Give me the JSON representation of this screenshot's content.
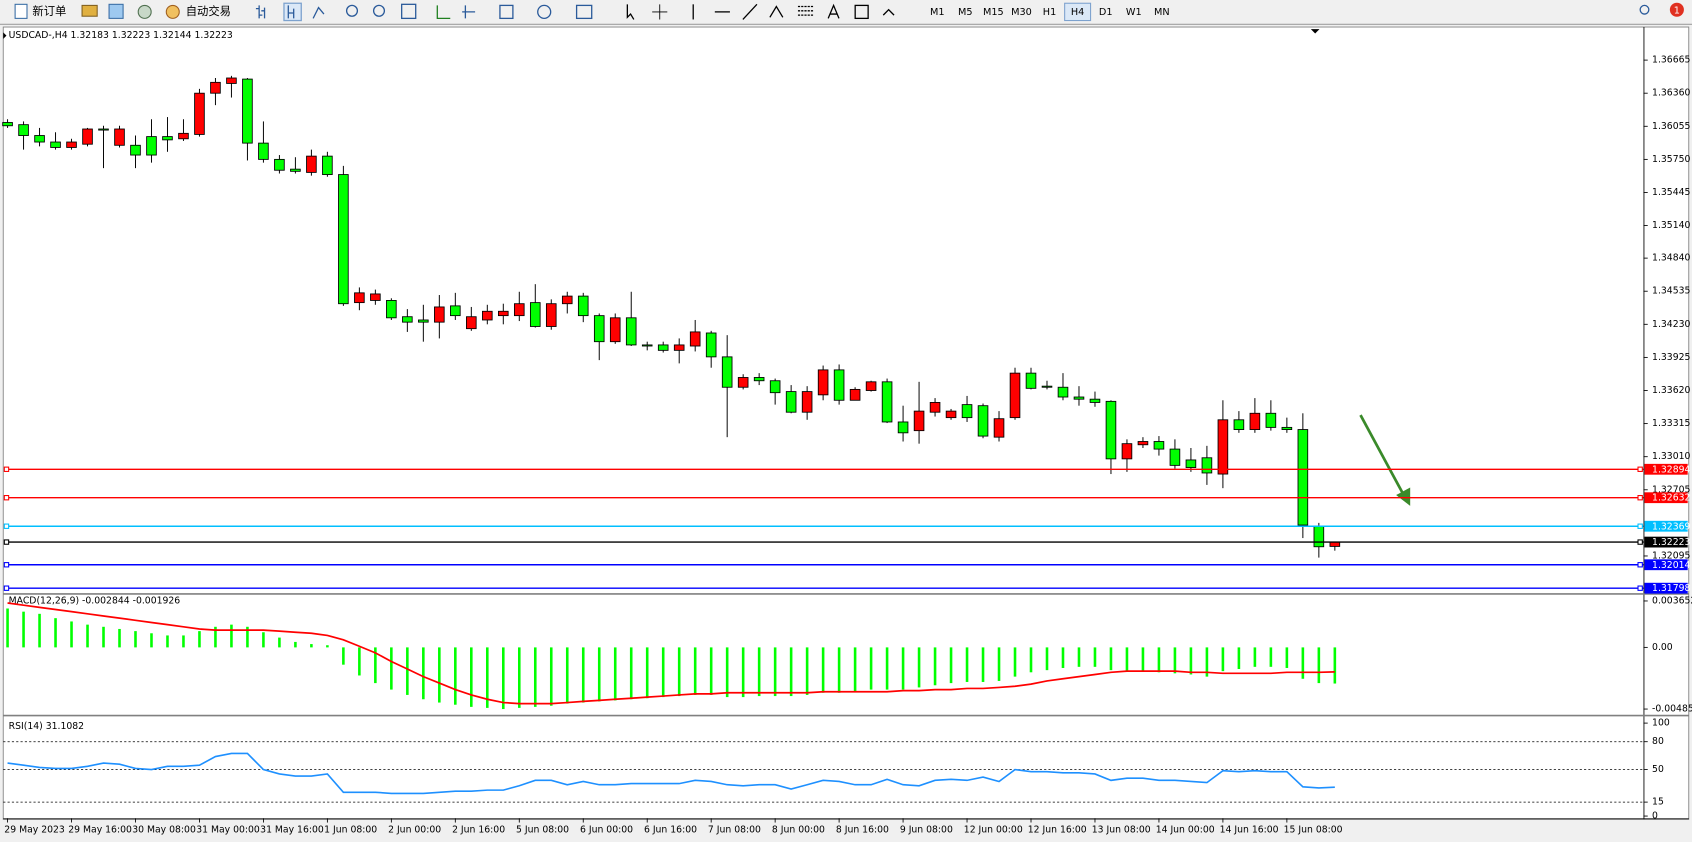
{
  "toolbar": {
    "new_order": "新订单",
    "auto_trading": "自动交易",
    "timeframes": [
      "M1",
      "M5",
      "M15",
      "M30",
      "H1",
      "H4",
      "D1",
      "W1",
      "MN"
    ],
    "active_timeframe": "H4",
    "notifications": "1"
  },
  "chart_data": [
    {
      "type": "candlestick",
      "title": "USDCAD-,H4 1.32183 1.32223 1.32144 1.32223",
      "categories": [
        "29 May 2023",
        null,
        null,
        null,
        "29 May 16:00",
        null,
        null,
        null,
        "30 May 08:00",
        null,
        null,
        null,
        "31 May 00:00",
        null,
        null,
        null,
        "31 May 16:00",
        null,
        null,
        null,
        "1 Jun 08:00",
        null,
        null,
        null,
        "2 Jun 00:00",
        null,
        null,
        null,
        "2 Jun 16:00",
        null,
        null,
        null,
        "5 Jun 08:00",
        null,
        null,
        null,
        "6 Jun 00:00",
        null,
        null,
        null,
        "6 Jun 16:00",
        null,
        null,
        null,
        "7 Jun 08:00",
        null,
        null,
        null,
        "8 Jun 00:00",
        null,
        null,
        null,
        "8 Jun 16:00",
        null,
        null,
        null,
        "9 Jun 08:00",
        null,
        null,
        null,
        "12 Jun 00:00",
        null,
        null,
        null,
        "12 Jun 16:00",
        null,
        null,
        null,
        "13 Jun 08:00",
        null,
        null,
        null,
        "14 Jun 00:00",
        null,
        null,
        null,
        "14 Jun 16:00",
        null,
        null,
        null,
        "15 Jun 08:00",
        null,
        null,
        null
      ],
      "ohlc": [
        [
          1.3609,
          1.3612,
          1.3604,
          1.3606
        ],
        [
          1.3607,
          1.361,
          1.3584,
          1.3597
        ],
        [
          1.3597,
          1.3604,
          1.3587,
          1.3591
        ],
        [
          1.3591,
          1.36,
          1.3584,
          1.3586
        ],
        [
          1.3586,
          1.3594,
          1.3584,
          1.3591
        ],
        [
          1.3589,
          1.3604,
          1.3587,
          1.3603
        ],
        [
          1.3603,
          1.3606,
          1.3567,
          1.3602
        ],
        [
          1.3588,
          1.3606,
          1.3586,
          1.3603
        ],
        [
          1.3588,
          1.3597,
          1.3567,
          1.3579
        ],
        [
          1.3596,
          1.3612,
          1.3572,
          1.3579
        ],
        [
          1.3596,
          1.3614,
          1.3582,
          1.3593
        ],
        [
          1.3594,
          1.3612,
          1.3592,
          1.3599
        ],
        [
          1.3598,
          1.364,
          1.3596,
          1.3636
        ],
        [
          1.3636,
          1.365,
          1.3625,
          1.3646
        ],
        [
          1.3645,
          1.3652,
          1.3632,
          1.365
        ],
        [
          1.3649,
          1.365,
          1.3574,
          1.359
        ],
        [
          1.359,
          1.361,
          1.3572,
          1.3575
        ],
        [
          1.3575,
          1.3579,
          1.3562,
          1.3565
        ],
        [
          1.3566,
          1.3577,
          1.3562,
          1.3564
        ],
        [
          1.3563,
          1.3584,
          1.356,
          1.3578
        ],
        [
          1.3578,
          1.3582,
          1.3559,
          1.3561
        ],
        [
          1.3561,
          1.3569,
          1.344,
          1.3442
        ],
        [
          1.3443,
          1.3457,
          1.3436,
          1.3452
        ],
        [
          1.3445,
          1.3455,
          1.3441,
          1.3451
        ],
        [
          1.3445,
          1.3447,
          1.3427,
          1.3429
        ],
        [
          1.343,
          1.3437,
          1.3416,
          1.3425
        ],
        [
          1.3427,
          1.3441,
          1.3407,
          1.3425
        ],
        [
          1.3425,
          1.345,
          1.341,
          1.3439
        ],
        [
          1.344,
          1.3452,
          1.3427,
          1.3431
        ],
        [
          1.3419,
          1.3439,
          1.3417,
          1.343
        ],
        [
          1.3427,
          1.3441,
          1.3423,
          1.3435
        ],
        [
          1.3431,
          1.3442,
          1.3423,
          1.3435
        ],
        [
          1.3431,
          1.3453,
          1.3426,
          1.3442
        ],
        [
          1.3443,
          1.346,
          1.342,
          1.3421
        ],
        [
          1.3421,
          1.3446,
          1.3418,
          1.3442
        ],
        [
          1.3442,
          1.3453,
          1.3433,
          1.3449
        ],
        [
          1.3449,
          1.3452,
          1.3425,
          1.3431
        ],
        [
          1.3431,
          1.3433,
          1.339,
          1.3407
        ],
        [
          1.3407,
          1.3433,
          1.3405,
          1.3429
        ],
        [
          1.3429,
          1.3453,
          1.3403,
          1.3404
        ],
        [
          1.3404,
          1.3407,
          1.3399,
          1.3403
        ],
        [
          1.3404,
          1.3407,
          1.3397,
          1.3399
        ],
        [
          1.3399,
          1.341,
          1.3387,
          1.3404
        ],
        [
          1.3403,
          1.3427,
          1.3398,
          1.3416
        ],
        [
          1.3415,
          1.3417,
          1.3383,
          1.3393
        ],
        [
          1.3393,
          1.3413,
          1.3319,
          1.3365
        ],
        [
          1.3365,
          1.3377,
          1.3363,
          1.3374
        ],
        [
          1.3374,
          1.3378,
          1.3367,
          1.3371
        ],
        [
          1.3371,
          1.3373,
          1.3349,
          1.336
        ],
        [
          1.3361,
          1.3367,
          1.3341,
          1.3342
        ],
        [
          1.3342,
          1.3366,
          1.3335,
          1.3361
        ],
        [
          1.3358,
          1.3385,
          1.3353,
          1.3381
        ],
        [
          1.3381,
          1.3386,
          1.3349,
          1.3353
        ],
        [
          1.3353,
          1.3365,
          1.3353,
          1.3363
        ],
        [
          1.3362,
          1.3371,
          1.3361,
          1.337
        ],
        [
          1.337,
          1.3373,
          1.3332,
          1.3333
        ],
        [
          1.3333,
          1.3348,
          1.3315,
          1.3323
        ],
        [
          1.3325,
          1.337,
          1.3313,
          1.3343
        ],
        [
          1.3342,
          1.3355,
          1.3338,
          1.3351
        ],
        [
          1.3337,
          1.3345,
          1.3335,
          1.3343
        ],
        [
          1.3349,
          1.3357,
          1.3333,
          1.3337
        ],
        [
          1.3348,
          1.335,
          1.3318,
          1.332
        ],
        [
          1.3319,
          1.3343,
          1.3315,
          1.3336
        ],
        [
          1.3337,
          1.3383,
          1.3335,
          1.3378
        ],
        [
          1.3378,
          1.3383,
          1.3363,
          1.3364
        ],
        [
          1.3366,
          1.3371,
          1.3363,
          1.3365
        ],
        [
          1.3365,
          1.3378,
          1.3353,
          1.3356
        ],
        [
          1.3356,
          1.3366,
          1.3348,
          1.3354
        ],
        [
          1.3354,
          1.3361,
          1.3347,
          1.3351
        ],
        [
          1.3352,
          1.3353,
          1.3285,
          1.3299
        ],
        [
          1.3299,
          1.3317,
          1.3287,
          1.3313
        ],
        [
          1.3312,
          1.3319,
          1.3309,
          1.3315
        ],
        [
          1.3315,
          1.332,
          1.3302,
          1.3308
        ],
        [
          1.3308,
          1.3317,
          1.329,
          1.3293
        ],
        [
          1.3298,
          1.3309,
          1.3287,
          1.3291
        ],
        [
          1.33,
          1.3311,
          1.3275,
          1.3286
        ],
        [
          1.3285,
          1.3353,
          1.3272,
          1.3335
        ],
        [
          1.3335,
          1.3343,
          1.3323,
          1.3326
        ],
        [
          1.3326,
          1.3355,
          1.3323,
          1.3341
        ],
        [
          1.3341,
          1.3353,
          1.3325,
          1.3328
        ],
        [
          1.3328,
          1.3337,
          1.3323,
          1.3326
        ],
        [
          1.3326,
          1.3341,
          1.3226,
          1.3238
        ],
        [
          1.3237,
          1.324,
          1.3208,
          1.3218
        ],
        [
          1.32183,
          1.32223,
          1.32144,
          1.32223
        ]
      ],
      "up_color": "#ff0000",
      "down_color": "#00ff00",
      "ylim": [
        1.3176,
        1.3695
      ],
      "yticks": [
        1.36665,
        {
          "value": 1.3636,
          "label": "1.36360"
        },
        1.36055,
        {
          "value": 1.3575,
          "label": "1.35750"
        },
        1.35445,
        {
          "value": 1.3514,
          "label": "1.35140"
        },
        {
          "value": 1.3484,
          "label": "1.34840"
        },
        1.34535,
        {
          "value": 1.3423,
          "label": "1.34230"
        },
        1.33925,
        {
          "value": 1.3362,
          "label": "1.33620"
        },
        1.33315,
        {
          "value": 1.3301,
          "label": "1.33010"
        },
        1.32705,
        1.32095
      ],
      "levels": [
        {
          "value": 1.32894,
          "color": "#ff0000"
        },
        {
          "value": 1.32632,
          "color": "#ff0000"
        },
        {
          "value": 1.32369,
          "color": "#00bfff"
        },
        {
          "value": 1.32223,
          "color": "#000000"
        },
        {
          "value": 1.32014,
          "color": "#0000ff"
        },
        {
          "value": 1.31798,
          "color": "#0000ff"
        }
      ]
    },
    {
      "type": "macd",
      "title": "MACD(12,26,9) -0.002844 -0.001926",
      "ylim": [
        -0.004851,
        0.003652
      ],
      "yticks": [
        0.003652,
        {
          "value": 0,
          "label": "0.00"
        },
        -0.004851
      ],
      "histogram": {
        "color": "#00ff00",
        "values": [
          0.00306,
          0.00281,
          0.00264,
          0.0023,
          0.00204,
          0.00179,
          0.00162,
          0.00145,
          0.00128,
          0.00111,
          0.00094,
          0.00094,
          0.00128,
          0.00162,
          0.00179,
          0.00162,
          0.00119,
          0.00077,
          0.00043,
          0.00026,
          0.00017,
          -0.00136,
          -0.00221,
          -0.00281,
          -0.00332,
          -0.00374,
          -0.00408,
          -0.00434,
          -0.00451,
          -0.00468,
          -0.00476,
          -0.00485,
          -0.00476,
          -0.00468,
          -0.00459,
          -0.00442,
          -0.00434,
          -0.00425,
          -0.00417,
          -0.00408,
          -0.004,
          -0.00391,
          -0.00383,
          -0.00374,
          -0.00374,
          -0.00391,
          -0.00391,
          -0.00383,
          -0.00383,
          -0.00383,
          -0.00374,
          -0.00357,
          -0.00357,
          -0.00349,
          -0.00332,
          -0.00332,
          -0.00332,
          -0.00315,
          -0.00298,
          -0.00281,
          -0.00272,
          -0.00272,
          -0.00264,
          -0.0023,
          -0.00196,
          -0.00179,
          -0.00162,
          -0.00153,
          -0.00153,
          -0.00179,
          -0.00187,
          -0.00187,
          -0.00196,
          -0.00204,
          -0.00213,
          -0.0023,
          -0.00187,
          -0.0017,
          -0.00153,
          -0.00153,
          -0.00162,
          -0.00247,
          -0.00281,
          -0.002844
        ]
      },
      "signal": {
        "color": "#ff0000",
        "values": [
          0.00349,
          0.00332,
          0.00315,
          0.00298,
          0.00281,
          0.00264,
          0.00247,
          0.0023,
          0.00213,
          0.00196,
          0.00179,
          0.00162,
          0.00145,
          0.00136,
          0.00136,
          0.00136,
          0.00136,
          0.00128,
          0.00119,
          0.00111,
          0.00094,
          0.0006,
          9e-05,
          -0.00043,
          -0.00111,
          -0.0017,
          -0.0023,
          -0.00281,
          -0.00332,
          -0.00374,
          -0.00408,
          -0.00434,
          -0.00442,
          -0.00442,
          -0.00442,
          -0.00434,
          -0.00425,
          -0.00417,
          -0.00408,
          -0.004,
          -0.00391,
          -0.00383,
          -0.00374,
          -0.00366,
          -0.00366,
          -0.00357,
          -0.00357,
          -0.00357,
          -0.00357,
          -0.00357,
          -0.00357,
          -0.00349,
          -0.00349,
          -0.00349,
          -0.00349,
          -0.00349,
          -0.0034,
          -0.0034,
          -0.00332,
          -0.00332,
          -0.00323,
          -0.00323,
          -0.00315,
          -0.00306,
          -0.00289,
          -0.00264,
          -0.00247,
          -0.0023,
          -0.00213,
          -0.00196,
          -0.00187,
          -0.00187,
          -0.00187,
          -0.00187,
          -0.00196,
          -0.00196,
          -0.00204,
          -0.00204,
          -0.00204,
          -0.00204,
          -0.00196,
          -0.00196,
          -0.00196,
          -0.001926
        ]
      }
    },
    {
      "type": "rsi",
      "title": "RSI(14) 31.1082",
      "color": "#1e90ff",
      "ylim": [
        0,
        100
      ],
      "yticks": [
        100,
        80,
        50,
        15,
        0
      ],
      "values": [
        57.0,
        54.7,
        52.3,
        51.2,
        51.2,
        53.5,
        57.0,
        55.8,
        51.2,
        50.0,
        53.5,
        53.5,
        54.7,
        64.0,
        67.4,
        67.4,
        50.0,
        45.3,
        43.0,
        43.0,
        45.3,
        25.6,
        25.6,
        25.6,
        24.4,
        24.4,
        24.4,
        25.6,
        26.7,
        26.7,
        27.9,
        27.9,
        32.6,
        38.4,
        38.4,
        33.7,
        37.2,
        33.7,
        33.7,
        34.9,
        34.9,
        34.9,
        34.9,
        38.4,
        37.2,
        33.7,
        32.6,
        33.7,
        33.7,
        29.1,
        33.7,
        38.4,
        37.2,
        33.7,
        33.7,
        39.5,
        33.7,
        32.6,
        38.4,
        39.5,
        38.4,
        41.9,
        37.2,
        50.0,
        47.7,
        47.7,
        46.5,
        46.5,
        45.3,
        38.4,
        40.7,
        40.7,
        38.4,
        38.4,
        37.2,
        36.0,
        48.8,
        47.7,
        48.8,
        47.7,
        47.7,
        31.4,
        30.2,
        31.1082
      ]
    }
  ]
}
